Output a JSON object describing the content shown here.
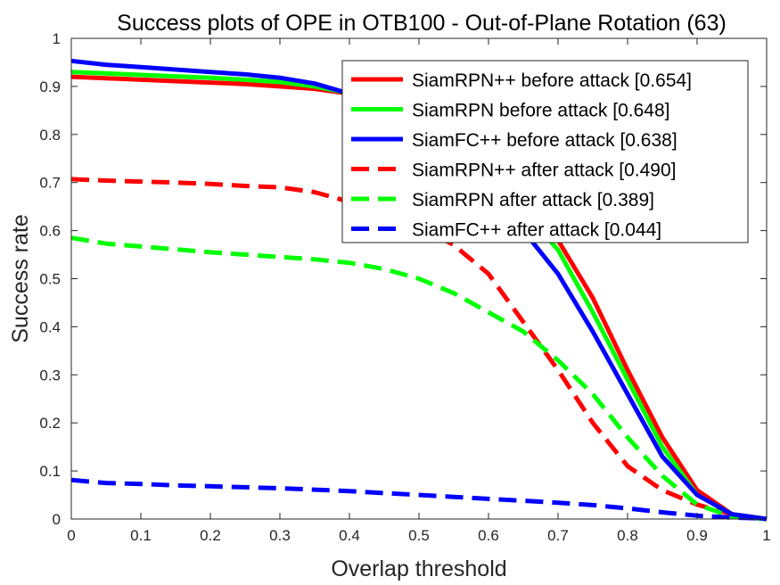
{
  "chart_data": {
    "type": "line",
    "title": "Success plots of OPE in OTB100 - Out-of-Plane Rotation (63)",
    "xlabel": "Overlap threshold",
    "ylabel": "Success rate",
    "xlim": [
      0,
      1
    ],
    "ylim": [
      0,
      1
    ],
    "xticks": [
      0,
      0.1,
      0.2,
      0.3,
      0.4,
      0.5,
      0.6,
      0.7,
      0.8,
      0.9,
      1
    ],
    "yticks": [
      0,
      0.1,
      0.2,
      0.3,
      0.4,
      0.5,
      0.6,
      0.7,
      0.8,
      0.9,
      1
    ],
    "xtick_labels": [
      "0",
      "0.1",
      "0.2",
      "0.3",
      "0.4",
      "0.5",
      "0.6",
      "0.7",
      "0.8",
      "0.9",
      "1"
    ],
    "ytick_labels": [
      "0",
      "0.1",
      "0.2",
      "0.3",
      "0.4",
      "0.5",
      "0.6",
      "0.7",
      "0.8",
      "0.9",
      "1"
    ],
    "grid": false,
    "legend_position": "top-right",
    "x": [
      0,
      0.05,
      0.1,
      0.15,
      0.2,
      0.25,
      0.3,
      0.35,
      0.4,
      0.45,
      0.5,
      0.55,
      0.6,
      0.65,
      0.7,
      0.75,
      0.8,
      0.85,
      0.9,
      0.95,
      1
    ],
    "series": [
      {
        "name": "SiamRPN++ before attack [0.654]",
        "color": "#ff0000",
        "style": "solid",
        "values": [
          0.92,
          0.917,
          0.914,
          0.911,
          0.908,
          0.905,
          0.9,
          0.895,
          0.885,
          0.87,
          0.85,
          0.8,
          0.73,
          0.65,
          0.58,
          0.46,
          0.31,
          0.17,
          0.06,
          0.01,
          0
        ]
      },
      {
        "name": "SiamRPN before attack [0.648]",
        "color": "#00ff00",
        "style": "solid",
        "values": [
          0.93,
          0.927,
          0.924,
          0.921,
          0.918,
          0.914,
          0.909,
          0.9,
          0.886,
          0.87,
          0.85,
          0.8,
          0.72,
          0.64,
          0.56,
          0.43,
          0.29,
          0.15,
          0.05,
          0.01,
          0
        ]
      },
      {
        "name": "SiamFC++ before attack [0.638]",
        "color": "#0000ff",
        "style": "solid",
        "values": [
          0.953,
          0.945,
          0.94,
          0.935,
          0.93,
          0.925,
          0.918,
          0.906,
          0.885,
          0.87,
          0.84,
          0.78,
          0.7,
          0.6,
          0.51,
          0.39,
          0.26,
          0.13,
          0.05,
          0.01,
          0
        ]
      },
      {
        "name": "SiamRPN++ after attack [0.490]",
        "color": "#ff0000",
        "style": "dashed",
        "values": [
          0.707,
          0.704,
          0.702,
          0.7,
          0.697,
          0.693,
          0.69,
          0.68,
          0.66,
          0.64,
          0.61,
          0.57,
          0.51,
          0.41,
          0.31,
          0.2,
          0.11,
          0.06,
          0.03,
          0.01,
          0
        ]
      },
      {
        "name": "SiamRPN after attack [0.389]",
        "color": "#00ff00",
        "style": "dashed",
        "values": [
          0.585,
          0.573,
          0.567,
          0.561,
          0.555,
          0.55,
          0.545,
          0.54,
          0.533,
          0.52,
          0.5,
          0.47,
          0.43,
          0.39,
          0.33,
          0.26,
          0.17,
          0.09,
          0.03,
          0.005,
          0
        ]
      },
      {
        "name": "SiamFC++ after attack [0.044]",
        "color": "#0000ff",
        "style": "dashed",
        "values": [
          0.081,
          0.075,
          0.073,
          0.07,
          0.068,
          0.066,
          0.064,
          0.061,
          0.058,
          0.054,
          0.05,
          0.046,
          0.042,
          0.038,
          0.034,
          0.029,
          0.022,
          0.014,
          0.007,
          0.003,
          0.001
        ]
      }
    ]
  }
}
